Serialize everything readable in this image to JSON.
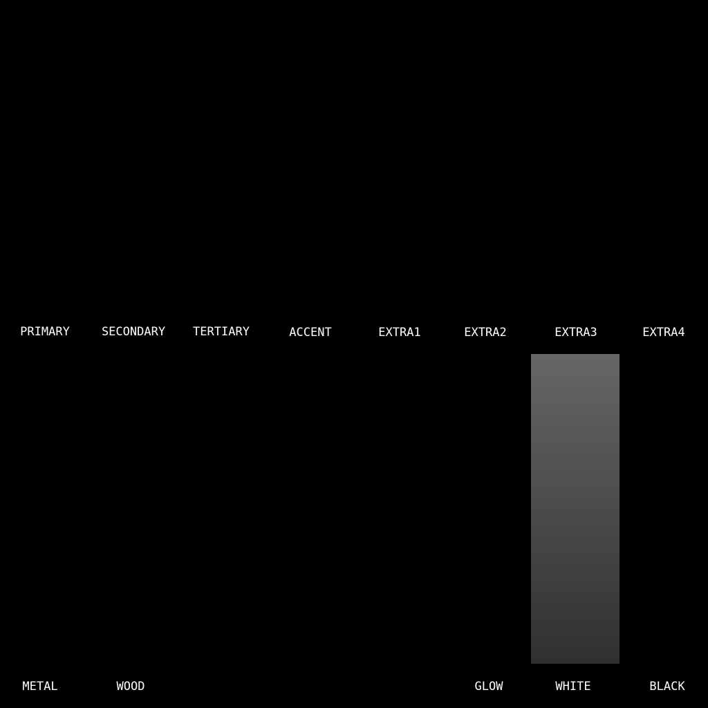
{
  "channels": [
    {
      "label": "PRIMARY"
    },
    {
      "label": "SECONDARY"
    },
    {
      "label": "TERTIARY"
    },
    {
      "label": "ACCENT"
    },
    {
      "label": "EXTRA1"
    },
    {
      "label": "EXTRA2"
    },
    {
      "label": "EXTRA3"
    },
    {
      "label": "EXTRA4"
    }
  ],
  "materials": [
    {
      "label": "METAL"
    },
    {
      "label": "WOOD"
    },
    {
      "label": ""
    },
    {
      "label": ""
    },
    {
      "label": ""
    },
    {
      "label": "GLOW"
    },
    {
      "label": "WHITE"
    },
    {
      "label": "BLACK"
    }
  ],
  "swatches": [
    {
      "column": 7,
      "gradient_top": "#666666",
      "gradient_bottom": "#303030"
    }
  ],
  "colors": {
    "background": "#000000",
    "text": "#ffffff"
  }
}
